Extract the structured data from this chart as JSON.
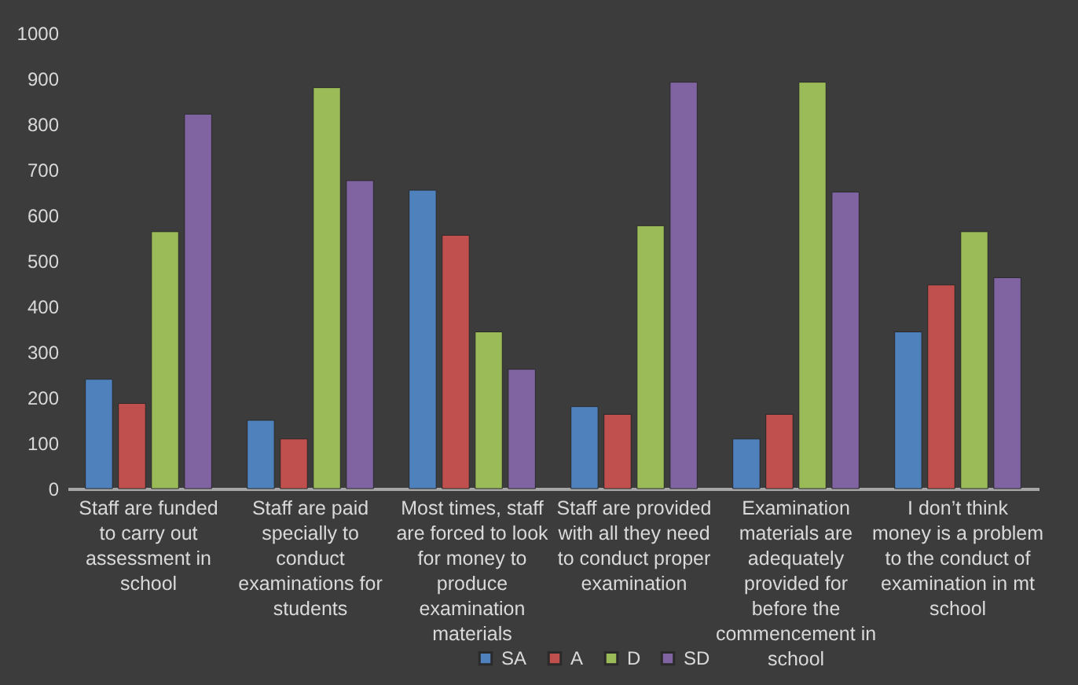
{
  "chart_data": {
    "type": "bar",
    "categories": [
      "Staff are funded to carry out assessment in school",
      "Staff are paid specially to conduct examinations for students",
      "Most times, staff are forced to look for money to produce examination materials",
      "Staff are provided with all they need to conduct proper examination",
      "Examination materials are adequately provided for before the commencement in school",
      "I don’t think money is a problem to the conduct of examination in mt school"
    ],
    "series": [
      {
        "name": "SA",
        "color": "#4f81bd",
        "values": [
          240,
          150,
          655,
          180,
          109,
          344
        ]
      },
      {
        "name": "A",
        "color": "#c0504d",
        "values": [
          187,
          109,
          556,
          163,
          163,
          447
        ]
      },
      {
        "name": "D",
        "color": "#9bbb59",
        "values": [
          564,
          880,
          344,
          577,
          892,
          564
        ]
      },
      {
        "name": "SD",
        "color": "#8064a2",
        "values": [
          822,
          676,
          262,
          892,
          651,
          463
        ]
      }
    ],
    "ylim": [
      0,
      1000
    ],
    "yticks": [
      0,
      100,
      200,
      300,
      400,
      500,
      600,
      700,
      800,
      900,
      1000
    ],
    "grid": false,
    "legend": "bottom"
  }
}
